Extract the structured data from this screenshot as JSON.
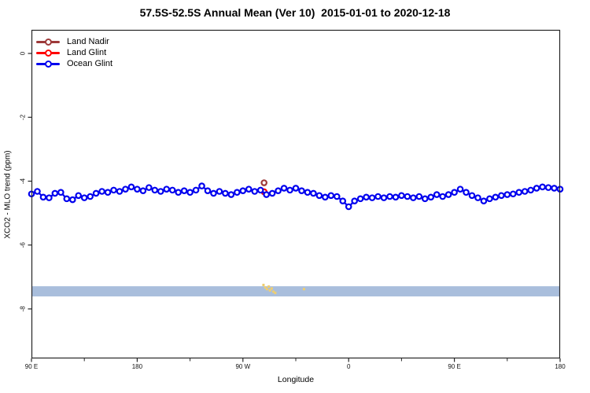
{
  "title": "57.5S-52.5S Annual Mean (Ver 10)  2015-01-01 to 2020-12-18",
  "legend": {
    "items": [
      {
        "label": "Land Nadir",
        "color": "#9E3A3A"
      },
      {
        "label": "Land Glint",
        "color": "#FF0000"
      },
      {
        "label": "Ocean Glint",
        "color": "#0000EE"
      }
    ]
  },
  "chart_data": {
    "type": "line",
    "title": "57.5S-52.5S Annual Mean (Ver 10)  2015-01-01 to 2020-12-18",
    "xlabel": "Longitude",
    "ylabel": "XCO2 - MLO trend (ppm)",
    "x_domain": [
      90,
      540
    ],
    "ylim": [
      -9.5,
      0.75
    ],
    "grid": false,
    "legend_position": "top-left",
    "x_ticks": [
      {
        "x": 90,
        "label": "90 E"
      },
      {
        "x": 180,
        "label": "180"
      },
      {
        "x": 270,
        "label": "90 W"
      },
      {
        "x": 360,
        "label": "0"
      },
      {
        "x": 450,
        "label": "90 E"
      },
      {
        "x": 540,
        "label": "180"
      }
    ],
    "x_minor_ticks": [
      135,
      225,
      315,
      405,
      495
    ],
    "y_ticks": [
      {
        "v": 0,
        "label": "0"
      },
      {
        "v": -2,
        "label": "-2"
      },
      {
        "v": -4,
        "label": "-4"
      },
      {
        "v": -6,
        "label": "-6"
      },
      {
        "v": -8,
        "label": "-8"
      }
    ],
    "band": {
      "y_from": -7.29,
      "y_to": -7.61,
      "color": "#A9BEDC"
    },
    "stray_points": {
      "color": "#F0CE6E",
      "points": [
        [
          287.5,
          -7.25
        ],
        [
          289,
          -7.33
        ],
        [
          290.5,
          -7.38
        ],
        [
          292,
          -7.3
        ],
        [
          293,
          -7.42
        ],
        [
          294.5,
          -7.36
        ],
        [
          296,
          -7.46
        ],
        [
          297.5,
          -7.5
        ],
        [
          322,
          -7.38
        ]
      ]
    },
    "series": [
      {
        "name": "Land Nadir",
        "color": "#9E3A3A",
        "marker": "open-circle",
        "x": [
          288
        ],
        "values": [
          -4.05
        ]
      },
      {
        "name": "Land Glint",
        "color": "#FF0000",
        "marker": "open-circle",
        "x": [
          288
        ],
        "values": [
          -4.33
        ]
      },
      {
        "name": "Ocean Glint",
        "color": "#0000EE",
        "marker": "open-circle",
        "x": [
          90,
          95,
          100,
          105,
          110,
          115,
          120,
          125,
          130,
          135,
          140,
          145,
          150,
          155,
          160,
          165,
          170,
          175,
          180,
          185,
          190,
          195,
          200,
          205,
          210,
          215,
          220,
          225,
          230,
          235,
          240,
          245,
          250,
          255,
          260,
          265,
          270,
          275,
          280,
          285,
          290,
          295,
          300,
          305,
          310,
          315,
          320,
          325,
          330,
          335,
          340,
          345,
          350,
          355,
          360,
          365,
          370,
          375,
          380,
          385,
          390,
          395,
          400,
          405,
          410,
          415,
          420,
          425,
          430,
          435,
          440,
          445,
          450,
          455,
          460,
          465,
          470,
          475,
          480,
          485,
          490,
          495,
          500,
          505,
          510,
          515,
          520,
          525,
          530,
          535,
          540
        ],
        "values": [
          -4.4,
          -4.32,
          -4.5,
          -4.52,
          -4.38,
          -4.35,
          -4.55,
          -4.58,
          -4.45,
          -4.52,
          -4.48,
          -4.38,
          -4.32,
          -4.35,
          -4.28,
          -4.32,
          -4.25,
          -4.18,
          -4.25,
          -4.3,
          -4.2,
          -4.28,
          -4.32,
          -4.25,
          -4.28,
          -4.35,
          -4.3,
          -4.35,
          -4.28,
          -4.15,
          -4.3,
          -4.38,
          -4.32,
          -4.38,
          -4.42,
          -4.35,
          -4.3,
          -4.25,
          -4.32,
          -4.28,
          -4.42,
          -4.38,
          -4.3,
          -4.22,
          -4.28,
          -4.22,
          -4.3,
          -4.35,
          -4.38,
          -4.45,
          -4.5,
          -4.45,
          -4.48,
          -4.62,
          -4.8,
          -4.62,
          -4.55,
          -4.5,
          -4.52,
          -4.48,
          -4.52,
          -4.48,
          -4.5,
          -4.45,
          -4.48,
          -4.52,
          -4.48,
          -4.55,
          -4.5,
          -4.42,
          -4.48,
          -4.42,
          -4.35,
          -4.25,
          -4.35,
          -4.45,
          -4.52,
          -4.62,
          -4.55,
          -4.5,
          -4.45,
          -4.42,
          -4.4,
          -4.35,
          -4.32,
          -4.28,
          -4.22,
          -4.18,
          -4.2,
          -4.22,
          -4.25
        ]
      }
    ]
  }
}
